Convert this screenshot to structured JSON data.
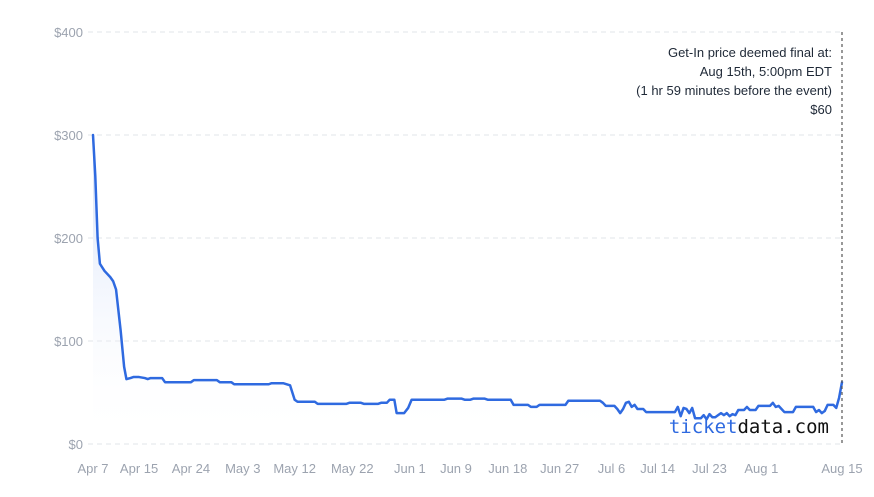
{
  "colors": {
    "line": "#2f6ae0",
    "area_top": "#c9d8f7",
    "grid": "#e2e4e8",
    "marker": "#555555",
    "axis_text": "#9ca3af",
    "annotation_text": "#1f2937",
    "watermark_accent": "#2f6ae0",
    "watermark_text": "#111111"
  },
  "annotation": {
    "line1": "Get-In price deemed final at:",
    "line2": "Aug 15th, 5:00pm EDT",
    "line3": "(1 hr 59 minutes before the event)",
    "line4": "$60"
  },
  "watermark": {
    "part1": "ticket",
    "part2": "data.com"
  },
  "chart_data": {
    "type": "area",
    "title": "",
    "xlabel": "",
    "ylabel": "",
    "ylim": [
      0,
      400
    ],
    "xlim": [
      0,
      130
    ],
    "grid": true,
    "y_ticks": [
      {
        "value": 0,
        "label": "$0"
      },
      {
        "value": 100,
        "label": "$100"
      },
      {
        "value": 200,
        "label": "$200"
      },
      {
        "value": 300,
        "label": "$300"
      },
      {
        "value": 400,
        "label": "$400"
      }
    ],
    "x_ticks": [
      {
        "day": 0,
        "label": "Apr 7"
      },
      {
        "day": 8,
        "label": "Apr 15"
      },
      {
        "day": 17,
        "label": "Apr 24"
      },
      {
        "day": 26,
        "label": "May 3"
      },
      {
        "day": 35,
        "label": "May 12"
      },
      {
        "day": 45,
        "label": "May 22"
      },
      {
        "day": 55,
        "label": "Jun 1"
      },
      {
        "day": 63,
        "label": "Jun 9"
      },
      {
        "day": 72,
        "label": "Jun 18"
      },
      {
        "day": 81,
        "label": "Jun 27"
      },
      {
        "day": 90,
        "label": "Jul 6"
      },
      {
        "day": 98,
        "label": "Jul 14"
      },
      {
        "day": 107,
        "label": "Jul 23"
      },
      {
        "day": 116,
        "label": "Aug 1"
      },
      {
        "day": 130,
        "label": "Aug 15"
      }
    ],
    "final_marker_day": 130,
    "series": [
      {
        "points": [
          [
            0,
            300
          ],
          [
            0.4,
            260
          ],
          [
            0.8,
            200
          ],
          [
            1.2,
            175
          ],
          [
            2,
            168
          ],
          [
            3,
            162
          ],
          [
            3.5,
            158
          ],
          [
            4,
            150
          ],
          [
            4.8,
            110
          ],
          [
            5.4,
            75
          ],
          [
            5.8,
            63
          ],
          [
            6.5,
            64
          ],
          [
            7,
            65
          ],
          [
            8,
            65
          ],
          [
            9,
            64
          ],
          [
            9.5,
            63
          ],
          [
            10,
            64
          ],
          [
            12,
            64
          ],
          [
            12.5,
            60
          ],
          [
            17,
            60
          ],
          [
            17.5,
            62
          ],
          [
            21.5,
            62
          ],
          [
            22,
            60
          ],
          [
            24,
            60
          ],
          [
            24.5,
            58
          ],
          [
            30.5,
            58
          ],
          [
            31,
            59
          ],
          [
            33,
            59
          ],
          [
            34.2,
            57
          ],
          [
            35,
            43
          ],
          [
            35.5,
            41
          ],
          [
            38.5,
            41
          ],
          [
            39,
            39
          ],
          [
            44,
            39
          ],
          [
            44.5,
            40
          ],
          [
            46.5,
            40
          ],
          [
            47,
            39
          ],
          [
            49.5,
            39
          ],
          [
            50,
            40
          ],
          [
            51,
            40
          ],
          [
            51.5,
            43
          ],
          [
            52.3,
            43
          ],
          [
            52.7,
            30
          ],
          [
            54,
            30
          ],
          [
            54.7,
            35
          ],
          [
            55.3,
            43
          ],
          [
            61,
            43
          ],
          [
            61.5,
            44
          ],
          [
            64,
            44
          ],
          [
            64.5,
            43
          ],
          [
            65.5,
            43
          ],
          [
            66,
            44
          ],
          [
            68,
            44
          ],
          [
            68.5,
            43
          ],
          [
            72.5,
            43
          ],
          [
            73,
            38
          ],
          [
            75.5,
            38
          ],
          [
            76,
            36
          ],
          [
            77,
            36
          ],
          [
            77.5,
            38
          ],
          [
            82,
            38
          ],
          [
            82.5,
            42
          ],
          [
            88,
            42
          ],
          [
            88.5,
            40
          ],
          [
            89,
            37
          ],
          [
            90.5,
            37
          ],
          [
            91,
            34
          ],
          [
            91.5,
            30
          ],
          [
            92,
            34
          ],
          [
            92.5,
            40
          ],
          [
            93,
            41
          ],
          [
            93.5,
            36
          ],
          [
            94,
            38
          ],
          [
            94.5,
            34
          ],
          [
            95.5,
            34
          ],
          [
            96,
            31
          ],
          [
            101,
            31
          ],
          [
            101.5,
            36
          ],
          [
            102,
            27
          ],
          [
            102.5,
            35
          ],
          [
            103,
            34
          ],
          [
            103.5,
            30
          ],
          [
            104,
            35
          ],
          [
            104.5,
            25
          ],
          [
            105.5,
            25
          ],
          [
            106,
            28
          ],
          [
            106.5,
            24
          ],
          [
            107,
            29
          ],
          [
            107.5,
            26
          ],
          [
            108,
            26
          ],
          [
            108.5,
            28
          ],
          [
            109,
            30
          ],
          [
            109.5,
            28
          ],
          [
            110,
            30
          ],
          [
            110.5,
            27
          ],
          [
            111,
            29
          ],
          [
            111.5,
            28
          ],
          [
            112,
            33
          ],
          [
            113,
            33
          ],
          [
            113.5,
            36
          ],
          [
            114,
            33
          ],
          [
            115,
            33
          ],
          [
            115.5,
            37
          ],
          [
            117.5,
            37
          ],
          [
            118,
            40
          ],
          [
            118.5,
            36
          ],
          [
            119,
            37
          ],
          [
            119.5,
            34
          ],
          [
            120,
            31
          ],
          [
            121.5,
            31
          ],
          [
            122,
            36
          ],
          [
            125,
            36
          ],
          [
            125.5,
            31
          ],
          [
            126,
            33
          ],
          [
            126.5,
            30
          ],
          [
            127,
            32
          ],
          [
            127.5,
            38
          ],
          [
            128.5,
            38
          ],
          [
            129,
            35
          ],
          [
            129.5,
            45
          ],
          [
            130,
            60
          ]
        ]
      }
    ]
  }
}
